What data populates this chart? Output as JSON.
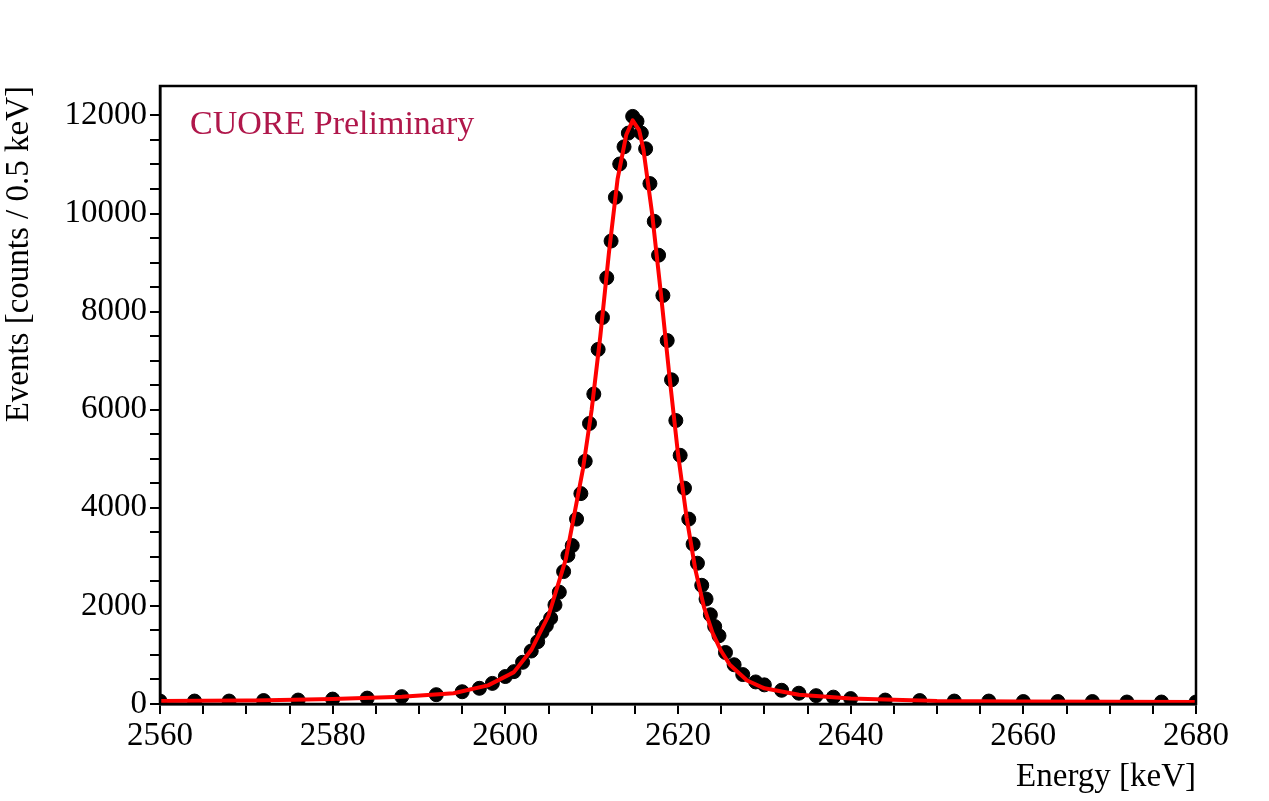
{
  "chart_data": {
    "type": "scatter",
    "xlabel": "Energy [keV]",
    "ylabel": "Events [counts / 0.5 keV]",
    "annotations": [
      "CUORE Preliminary"
    ],
    "marker": "circle",
    "legend": false,
    "xlim": [
      2560,
      2680
    ],
    "ylim": [
      0,
      12600
    ],
    "xticks": [
      2560,
      {
        "value": 2565,
        "label": null
      },
      {
        "value": 2570,
        "label": null
      },
      {
        "value": 2575,
        "label": null
      },
      2580,
      {
        "value": 2585,
        "label": null
      },
      {
        "value": 2590,
        "label": null
      },
      {
        "value": 2595,
        "label": null
      },
      2600,
      {
        "value": 2605,
        "label": null
      },
      {
        "value": 2610,
        "label": null
      },
      {
        "value": 2615,
        "label": null
      },
      2620,
      {
        "value": 2625,
        "label": null
      },
      {
        "value": 2630,
        "label": null
      },
      {
        "value": 2635,
        "label": null
      },
      2640,
      {
        "value": 2645,
        "label": null
      },
      {
        "value": 2650,
        "label": null
      },
      {
        "value": 2655,
        "label": null
      },
      2660,
      {
        "value": 2665,
        "label": null
      },
      {
        "value": 2670,
        "label": null
      },
      {
        "value": 2675,
        "label": null
      },
      2680
    ],
    "yticks": [
      0,
      {
        "value": 500,
        "label": null
      },
      {
        "value": 1000,
        "label": null
      },
      {
        "value": 1500,
        "label": null
      },
      2000,
      {
        "value": 2500,
        "label": null
      },
      {
        "value": 3000,
        "label": null
      },
      {
        "value": 3500,
        "label": null
      },
      4000,
      {
        "value": 4500,
        "label": null
      },
      {
        "value": 5000,
        "label": null
      },
      {
        "value": 5500,
        "label": null
      },
      6000,
      {
        "value": 6500,
        "label": null
      },
      {
        "value": 7000,
        "label": null
      },
      {
        "value": 7500,
        "label": null
      },
      8000,
      {
        "value": 8500,
        "label": null
      },
      {
        "value": 9000,
        "label": null
      },
      {
        "value": 9500,
        "label": null
      },
      10000,
      {
        "value": 10500,
        "label": null
      },
      {
        "value": 11000,
        "label": null
      },
      {
        "value": 11500,
        "label": null
      },
      12000
    ],
    "series": [
      {
        "color": "#000000",
        "x": [
          2560,
          2564,
          2568,
          2572,
          2576,
          2580,
          2584,
          2588,
          2592,
          2595,
          2597,
          2598.5,
          2600,
          2601,
          2602,
          2603,
          2603.75,
          2604.25,
          2604.75,
          2605.25,
          2605.75,
          2606.25,
          2606.75,
          2607.25,
          2607.75,
          2608.25,
          2608.75,
          2609.25,
          2609.75,
          2610.25,
          2610.75,
          2611.25,
          2611.75,
          2612.25,
          2612.75,
          2613.25,
          2613.75,
          2614.25,
          2614.75,
          2615.25,
          2615.75,
          2616.25,
          2616.75,
          2617.25,
          2617.75,
          2618.25,
          2618.75,
          2619.25,
          2619.75,
          2620.25,
          2620.75,
          2621.25,
          2621.75,
          2622.25,
          2622.75,
          2623.25,
          2623.75,
          2624.25,
          2624.75,
          2625.5,
          2626.5,
          2627.5,
          2629,
          2630,
          2632,
          2634,
          2636,
          2638,
          2640,
          2644,
          2648,
          2652,
          2656,
          2660,
          2664,
          2668,
          2672,
          2676,
          2680
        ],
        "values": [
          60,
          60,
          60,
          70,
          80,
          100,
          120,
          150,
          190,
          250,
          320,
          420,
          560,
          660,
          850,
          1080,
          1270,
          1470,
          1600,
          1750,
          2020,
          2280,
          2700,
          3030,
          3230,
          3770,
          4290,
          4950,
          5720,
          6320,
          7230,
          7880,
          8690,
          9440,
          10330,
          11010,
          11360,
          11640,
          11980,
          11880,
          11640,
          11320,
          10610,
          9840,
          9150,
          8330,
          7410,
          6610,
          5780,
          5070,
          4400,
          3770,
          3260,
          2870,
          2420,
          2140,
          1820,
          1580,
          1390,
          1050,
          800,
          600,
          450,
          390,
          280,
          220,
          170,
          140,
          110,
          80,
          70,
          60,
          60,
          50,
          50,
          50,
          40,
          40,
          40
        ]
      },
      {
        "type": "line",
        "marker": "none",
        "color": "#ff0000",
        "x": [
          2560,
          2570,
          2580,
          2588,
          2594,
          2598,
          2601,
          2603,
          2605,
          2607,
          2609,
          2610,
          2611,
          2612,
          2613,
          2614,
          2614.75,
          2615.5,
          2616,
          2617,
          2618,
          2619,
          2620,
          2621,
          2622,
          2623,
          2624,
          2625,
          2626,
          2628,
          2630,
          2634,
          2640,
          2650,
          2660,
          2680
        ],
        "values": [
          60,
          70,
          100,
          150,
          220,
          380,
          650,
          1100,
          1800,
          2950,
          4800,
          6000,
          7500,
          9200,
          10700,
          11600,
          11900,
          11700,
          11300,
          10000,
          8400,
          6700,
          5100,
          3800,
          2750,
          1980,
          1450,
          1080,
          800,
          480,
          320,
          190,
          110,
          60,
          50,
          40
        ]
      }
    ]
  }
}
